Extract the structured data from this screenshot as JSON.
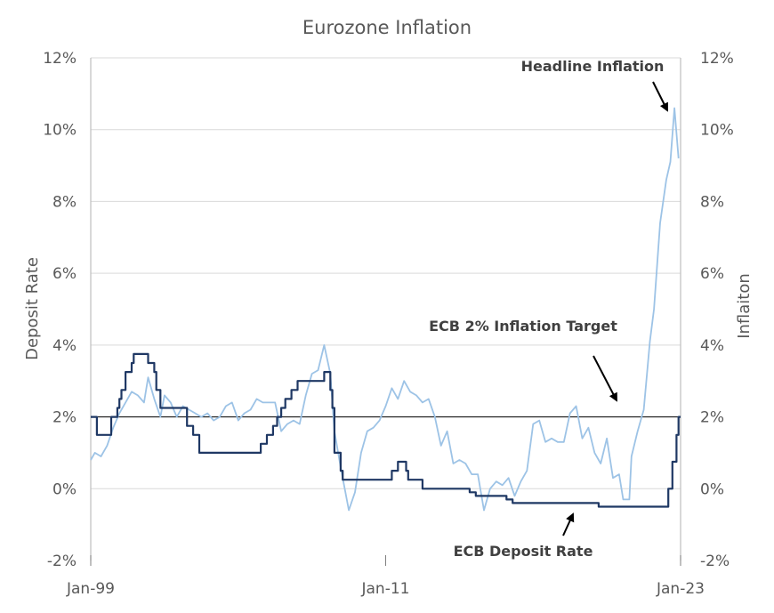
{
  "chart_data": {
    "type": "line",
    "title": "Eurozone Inflation",
    "ylabel_left": "Deposit  Rate",
    "ylabel_right": "Inflaiton",
    "ylim": [
      -2,
      12
    ],
    "y_ticks": [
      "-2%",
      "0%",
      "2%",
      "4%",
      "6%",
      "8%",
      "10%",
      "12%"
    ],
    "x_ticks": [
      "Jan-99",
      "Jan-11",
      "Jan-23"
    ],
    "xlim": [
      "1999-01",
      "2023-01"
    ],
    "grid": true,
    "annotations": [
      {
        "id": "headline",
        "text": "Headline Inflation"
      },
      {
        "id": "target",
        "text": "ECB 2% Inflation Target"
      },
      {
        "id": "deposit",
        "text": "ECB Deposit Rate"
      }
    ],
    "series": [
      {
        "name": "Headline Inflation",
        "color": "#9dc3e6",
        "points": [
          [
            "1999-01",
            0.8
          ],
          [
            "1999-03",
            1.0
          ],
          [
            "1999-06",
            0.9
          ],
          [
            "1999-09",
            1.2
          ],
          [
            "1999-12",
            1.7
          ],
          [
            "2000-03",
            2.1
          ],
          [
            "2000-06",
            2.4
          ],
          [
            "2000-09",
            2.7
          ],
          [
            "2000-12",
            2.6
          ],
          [
            "2001-03",
            2.4
          ],
          [
            "2001-05",
            3.1
          ],
          [
            "2001-08",
            2.5
          ],
          [
            "2001-11",
            2.0
          ],
          [
            "2002-01",
            2.6
          ],
          [
            "2002-04",
            2.4
          ],
          [
            "2002-07",
            2.0
          ],
          [
            "2002-10",
            2.3
          ],
          [
            "2003-01",
            2.2
          ],
          [
            "2003-04",
            2.1
          ],
          [
            "2003-07",
            2.0
          ],
          [
            "2003-10",
            2.1
          ],
          [
            "2004-01",
            1.9
          ],
          [
            "2004-04",
            2.0
          ],
          [
            "2004-07",
            2.3
          ],
          [
            "2004-10",
            2.4
          ],
          [
            "2005-01",
            1.9
          ],
          [
            "2005-04",
            2.1
          ],
          [
            "2005-07",
            2.2
          ],
          [
            "2005-10",
            2.5
          ],
          [
            "2006-01",
            2.4
          ],
          [
            "2006-04",
            2.4
          ],
          [
            "2006-07",
            2.4
          ],
          [
            "2006-10",
            1.6
          ],
          [
            "2007-01",
            1.8
          ],
          [
            "2007-04",
            1.9
          ],
          [
            "2007-07",
            1.8
          ],
          [
            "2007-10",
            2.6
          ],
          [
            "2008-01",
            3.2
          ],
          [
            "2008-04",
            3.3
          ],
          [
            "2008-07",
            4.0
          ],
          [
            "2008-10",
            3.2
          ],
          [
            "2008-12",
            1.6
          ],
          [
            "2009-03",
            0.6
          ],
          [
            "2009-05",
            0.0
          ],
          [
            "2009-07",
            -0.6
          ],
          [
            "2009-10",
            -0.1
          ],
          [
            "2010-01",
            1.0
          ],
          [
            "2010-04",
            1.6
          ],
          [
            "2010-07",
            1.7
          ],
          [
            "2010-10",
            1.9
          ],
          [
            "2011-01",
            2.3
          ],
          [
            "2011-04",
            2.8
          ],
          [
            "2011-07",
            2.5
          ],
          [
            "2011-10",
            3.0
          ],
          [
            "2012-01",
            2.7
          ],
          [
            "2012-04",
            2.6
          ],
          [
            "2012-07",
            2.4
          ],
          [
            "2012-10",
            2.5
          ],
          [
            "2013-01",
            2.0
          ],
          [
            "2013-04",
            1.2
          ],
          [
            "2013-07",
            1.6
          ],
          [
            "2013-10",
            0.7
          ],
          [
            "2014-01",
            0.8
          ],
          [
            "2014-04",
            0.7
          ],
          [
            "2014-07",
            0.4
          ],
          [
            "2014-10",
            0.4
          ],
          [
            "2015-01",
            -0.6
          ],
          [
            "2015-04",
            0.0
          ],
          [
            "2015-07",
            0.2
          ],
          [
            "2015-10",
            0.1
          ],
          [
            "2016-01",
            0.3
          ],
          [
            "2016-04",
            -0.2
          ],
          [
            "2016-07",
            0.2
          ],
          [
            "2016-10",
            0.5
          ],
          [
            "2017-01",
            1.8
          ],
          [
            "2017-04",
            1.9
          ],
          [
            "2017-07",
            1.3
          ],
          [
            "2017-10",
            1.4
          ],
          [
            "2018-01",
            1.3
          ],
          [
            "2018-04",
            1.3
          ],
          [
            "2018-07",
            2.1
          ],
          [
            "2018-10",
            2.3
          ],
          [
            "2019-01",
            1.4
          ],
          [
            "2019-04",
            1.7
          ],
          [
            "2019-07",
            1.0
          ],
          [
            "2019-10",
            0.7
          ],
          [
            "2020-01",
            1.4
          ],
          [
            "2020-04",
            0.3
          ],
          [
            "2020-07",
            0.4
          ],
          [
            "2020-09",
            -0.3
          ],
          [
            "2020-12",
            -0.3
          ],
          [
            "2021-01",
            0.9
          ],
          [
            "2021-04",
            1.6
          ],
          [
            "2021-07",
            2.2
          ],
          [
            "2021-10",
            4.1
          ],
          [
            "2021-12",
            5.0
          ],
          [
            "2022-03",
            7.4
          ],
          [
            "2022-06",
            8.6
          ],
          [
            "2022-08",
            9.1
          ],
          [
            "2022-10",
            10.6
          ],
          [
            "2022-12",
            9.2
          ]
        ]
      },
      {
        "name": "ECB Deposit Rate",
        "color": "#1f3864",
        "step": true,
        "points": [
          [
            "1999-01",
            2.0
          ],
          [
            "1999-04",
            1.5
          ],
          [
            "1999-11",
            2.0
          ],
          [
            "2000-02",
            2.25
          ],
          [
            "2000-03",
            2.5
          ],
          [
            "2000-04",
            2.75
          ],
          [
            "2000-06",
            3.25
          ],
          [
            "2000-09",
            3.5
          ],
          [
            "2000-10",
            3.75
          ],
          [
            "2001-05",
            3.5
          ],
          [
            "2001-08",
            3.25
          ],
          [
            "2001-09",
            2.75
          ],
          [
            "2001-11",
            2.25
          ],
          [
            "2002-12",
            1.75
          ],
          [
            "2003-03",
            1.5
          ],
          [
            "2003-06",
            1.0
          ],
          [
            "2005-12",
            1.25
          ],
          [
            "2006-03",
            1.5
          ],
          [
            "2006-06",
            1.75
          ],
          [
            "2006-08",
            2.0
          ],
          [
            "2006-10",
            2.25
          ],
          [
            "2006-12",
            2.5
          ],
          [
            "2007-03",
            2.75
          ],
          [
            "2007-06",
            3.0
          ],
          [
            "2008-07",
            3.25
          ],
          [
            "2008-10",
            2.75
          ],
          [
            "2008-11",
            2.25
          ],
          [
            "2008-12",
            1.0
          ],
          [
            "2009-01",
            1.0
          ],
          [
            "2009-03",
            0.5
          ],
          [
            "2009-04",
            0.25
          ],
          [
            "2011-04",
            0.5
          ],
          [
            "2011-07",
            0.75
          ],
          [
            "2011-11",
            0.5
          ],
          [
            "2011-12",
            0.25
          ],
          [
            "2012-07",
            0.0
          ],
          [
            "2014-06",
            -0.1
          ],
          [
            "2014-09",
            -0.2
          ],
          [
            "2015-12",
            -0.3
          ],
          [
            "2016-03",
            -0.4
          ],
          [
            "2019-09",
            -0.5
          ],
          [
            "2022-07",
            0.0
          ],
          [
            "2022-09",
            0.75
          ],
          [
            "2022-11",
            1.5
          ],
          [
            "2022-12",
            2.0
          ],
          [
            "2023-01",
            2.0
          ]
        ]
      },
      {
        "name": "ECB 2% Inflation Target",
        "color": "#000000",
        "points": [
          [
            "1999-01",
            2.0
          ],
          [
            "2023-01",
            2.0
          ]
        ]
      }
    ]
  }
}
